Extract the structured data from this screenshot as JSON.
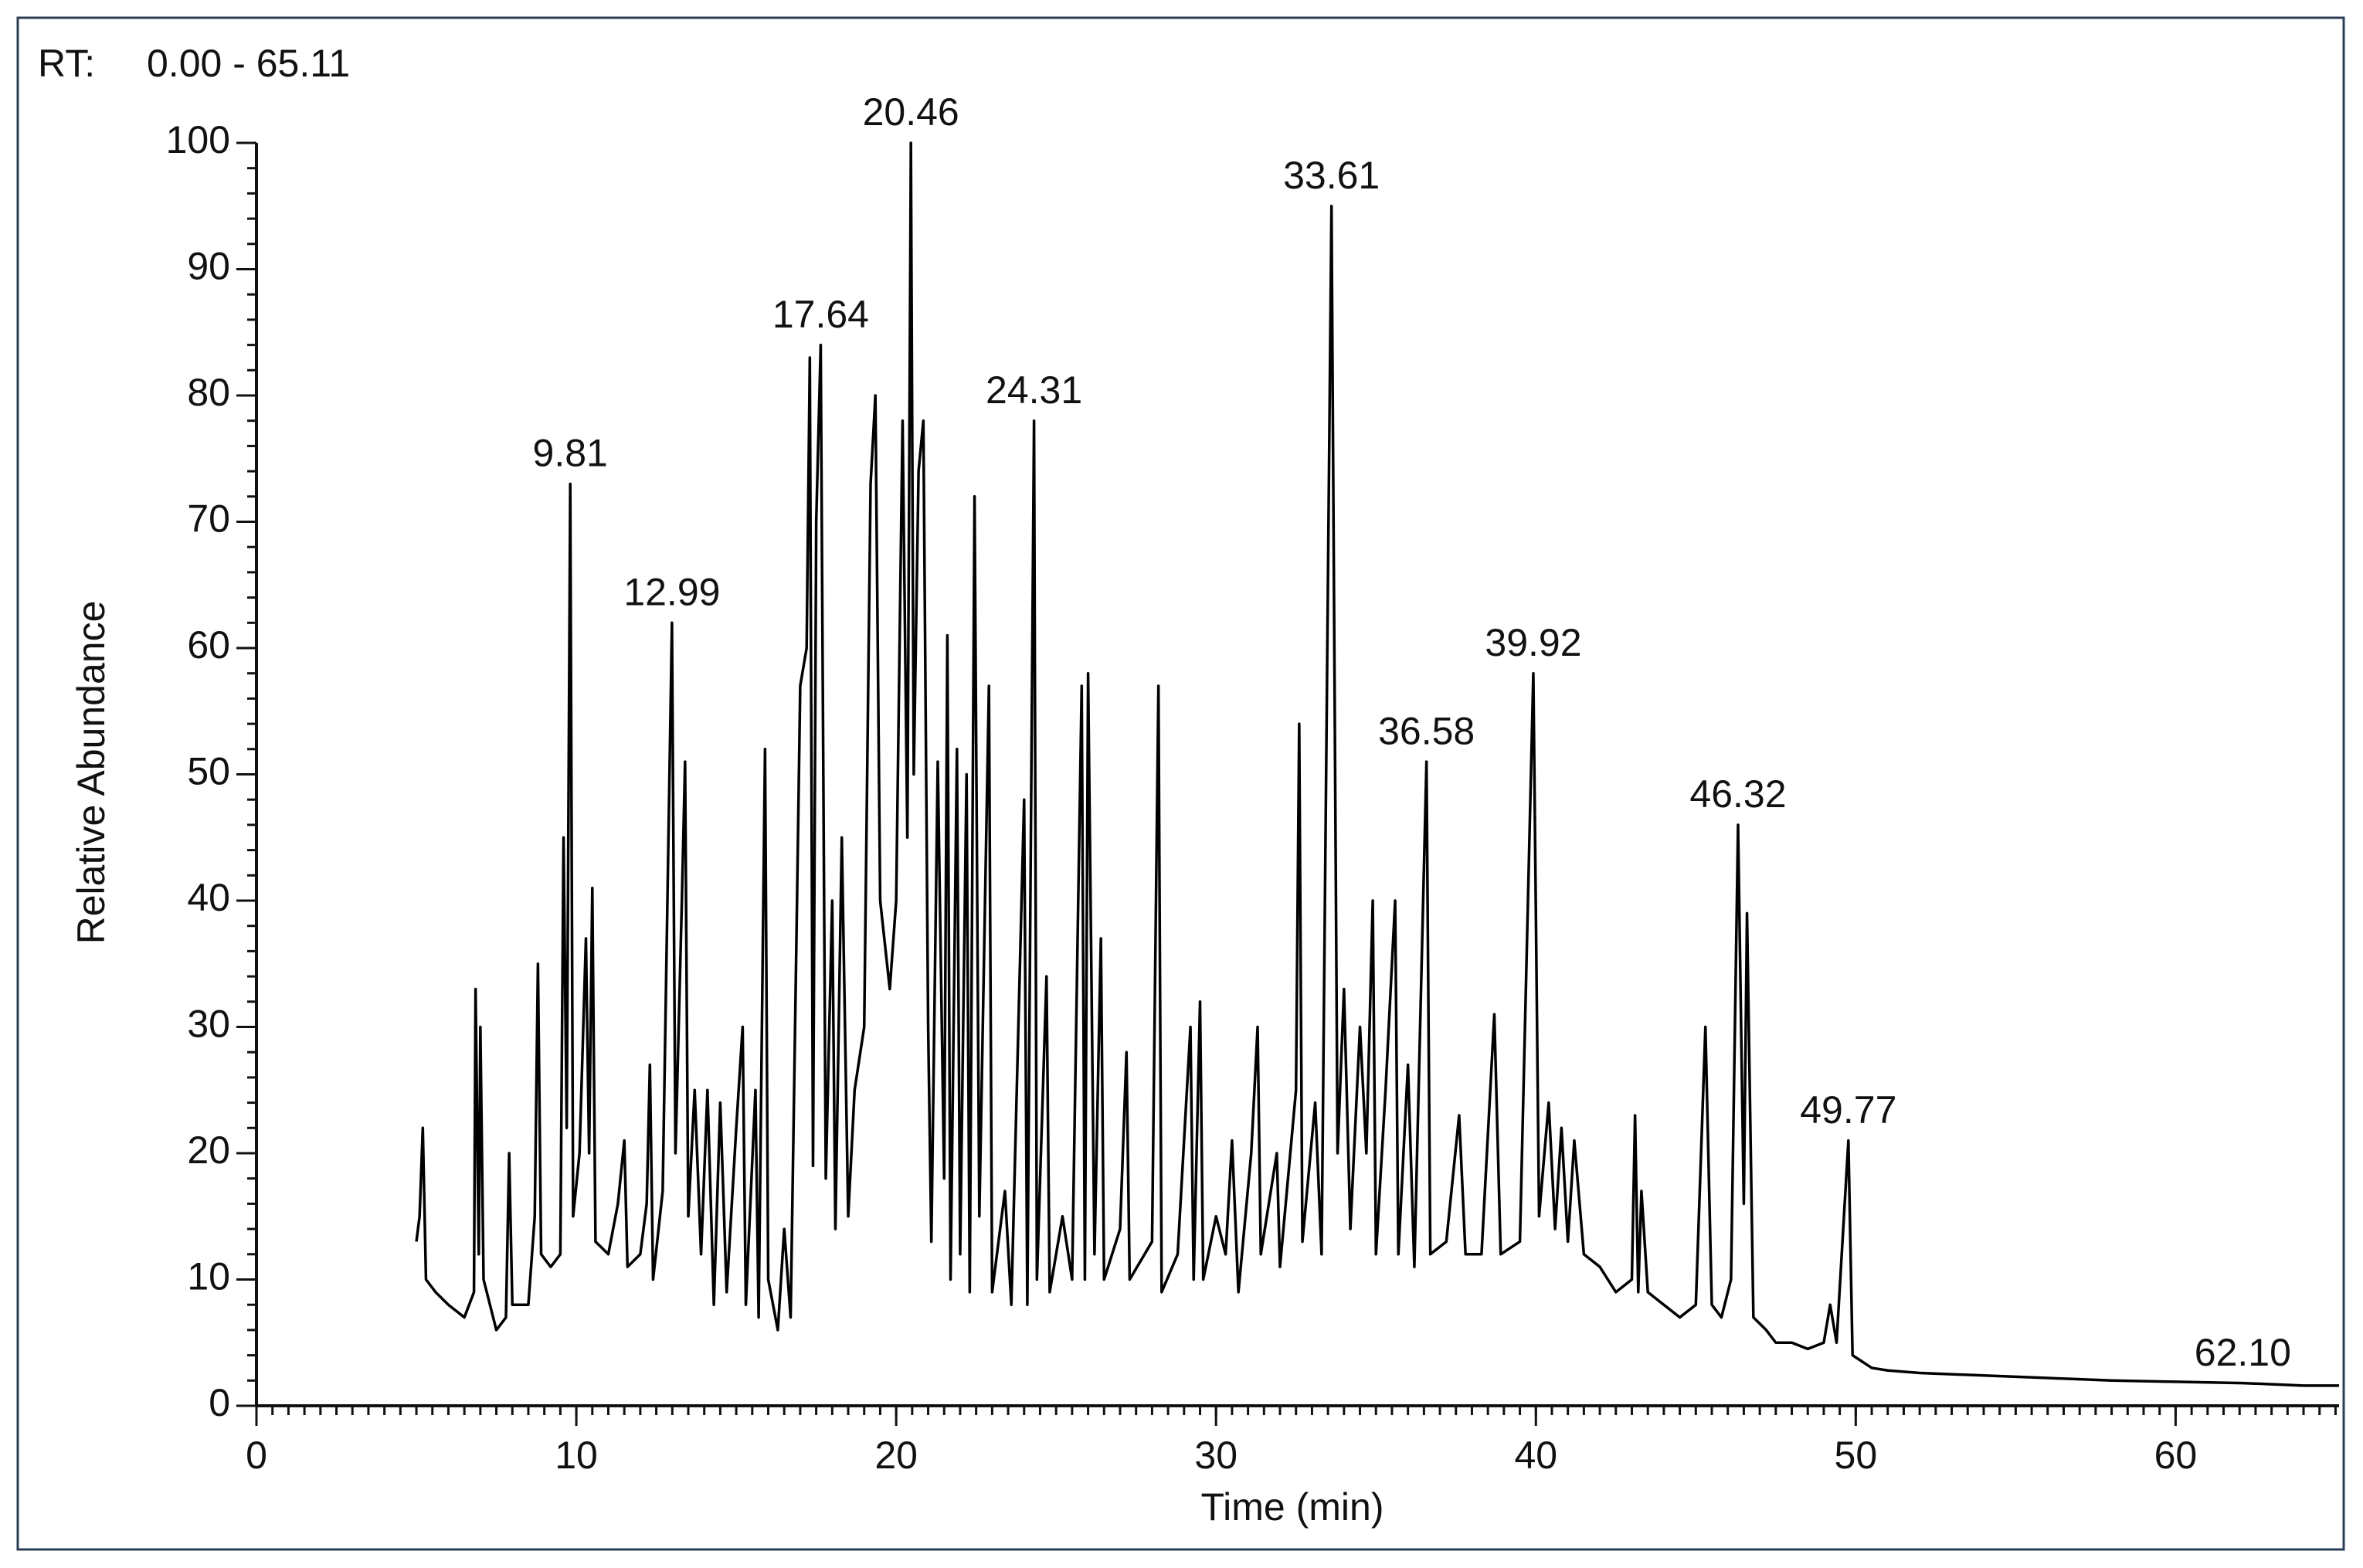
{
  "chart_data": {
    "type": "line",
    "rt_label": "RT:",
    "rt_range": "0.00 - 65.11",
    "ylabel": "Relative Abundance",
    "xlabel": "Time (min)",
    "color": "#000000",
    "range_color": "#3a3ab8",
    "xlim": [
      0,
      65.11
    ],
    "ylim": [
      0,
      100
    ],
    "xticks": [
      0,
      10,
      20,
      30,
      40,
      50,
      60
    ],
    "yticks": [
      0,
      10,
      20,
      30,
      40,
      50,
      60,
      70,
      80,
      90,
      100
    ],
    "x_minor_step": 0.5,
    "y_minor_step": 2,
    "x": [
      5.0,
      5.1,
      5.2,
      5.3,
      5.6,
      6.0,
      6.5,
      6.8,
      6.85,
      6.95,
      7.0,
      7.1,
      7.5,
      7.8,
      7.9,
      8.0,
      8.5,
      8.7,
      8.8,
      8.9,
      9.2,
      9.5,
      9.6,
      9.7,
      9.81,
      9.9,
      10.1,
      10.3,
      10.4,
      10.5,
      10.6,
      11.0,
      11.3,
      11.5,
      11.6,
      12.0,
      12.2,
      12.3,
      12.4,
      12.7,
      12.99,
      13.1,
      13.3,
      13.4,
      13.5,
      13.7,
      13.9,
      14.1,
      14.3,
      14.5,
      14.7,
      15.0,
      15.2,
      15.3,
      15.6,
      15.7,
      15.9,
      16.0,
      16.3,
      16.5,
      16.7,
      16.9,
      17.0,
      17.2,
      17.3,
      17.4,
      17.5,
      17.64,
      17.8,
      18.0,
      18.1,
      18.3,
      18.5,
      18.7,
      19.0,
      19.2,
      19.35,
      19.5,
      19.8,
      20.0,
      20.2,
      20.35,
      20.46,
      20.55,
      20.7,
      20.85,
      21.0,
      21.1,
      21.3,
      21.5,
      21.6,
      21.7,
      21.9,
      22.0,
      22.2,
      22.3,
      22.45,
      22.6,
      22.9,
      23.0,
      23.4,
      23.6,
      24.0,
      24.1,
      24.31,
      24.4,
      24.7,
      24.8,
      25.2,
      25.5,
      25.8,
      25.9,
      26.0,
      26.2,
      26.4,
      26.5,
      27.0,
      27.2,
      27.3,
      28.0,
      28.2,
      28.3,
      28.8,
      29.2,
      29.3,
      29.5,
      29.6,
      30.0,
      30.3,
      30.5,
      30.7,
      31.1,
      31.3,
      31.4,
      31.9,
      32.0,
      32.5,
      32.6,
      32.7,
      33.1,
      33.3,
      33.61,
      33.8,
      34.0,
      34.2,
      34.5,
      34.7,
      34.9,
      35.0,
      35.3,
      35.6,
      35.7,
      36.0,
      36.2,
      36.58,
      36.7,
      37.2,
      37.6,
      37.8,
      38.3,
      38.7,
      38.9,
      39.5,
      39.92,
      40.1,
      40.4,
      40.6,
      40.8,
      41.0,
      41.2,
      41.5,
      42.0,
      42.5,
      43.0,
      43.1,
      43.2,
      43.3,
      43.5,
      44.0,
      44.5,
      45.0,
      45.3,
      45.5,
      45.8,
      46.1,
      46.32,
      46.5,
      46.6,
      46.8,
      47.2,
      47.5,
      48.0,
      48.5,
      49.0,
      49.2,
      49.4,
      49.77,
      49.9,
      50.5,
      51,
      52,
      54,
      56,
      58,
      60,
      62.1,
      64,
      65.11
    ],
    "values": [
      13,
      15,
      22,
      10,
      9,
      8,
      7,
      9,
      33,
      12,
      30,
      10,
      6,
      7,
      20,
      8,
      8,
      15,
      35,
      12,
      11,
      12,
      45,
      22,
      73,
      15,
      20,
      37,
      20,
      41,
      13,
      12,
      16,
      21,
      11,
      12,
      16,
      27,
      10,
      17,
      62,
      20,
      40,
      51,
      15,
      25,
      12,
      25,
      8,
      24,
      9,
      22,
      30,
      8,
      25,
      7,
      52,
      10,
      6,
      14,
      7,
      40,
      57,
      60,
      83,
      19,
      70,
      84,
      18,
      40,
      14,
      45,
      15,
      25,
      30,
      73,
      80,
      40,
      33,
      40,
      78,
      45,
      100,
      50,
      74,
      78,
      30,
      13,
      51,
      18,
      61,
      10,
      52,
      12,
      50,
      9,
      72,
      15,
      57,
      9,
      17,
      8,
      48,
      8,
      78,
      10,
      34,
      9,
      15,
      10,
      57,
      10,
      58,
      12,
      37,
      10,
      14,
      28,
      10,
      13,
      57,
      9,
      12,
      30,
      10,
      32,
      10,
      15,
      12,
      21,
      9,
      20,
      30,
      12,
      20,
      11,
      25,
      54,
      13,
      24,
      12,
      95,
      20,
      33,
      14,
      30,
      20,
      40,
      12,
      25,
      40,
      12,
      27,
      11,
      51,
      12,
      13,
      23,
      12,
      12,
      31,
      12,
      13,
      58,
      15,
      24,
      14,
      22,
      13,
      21,
      12,
      11,
      9,
      10,
      23,
      9,
      17,
      9,
      8,
      7,
      8,
      30,
      8,
      7,
      10,
      46,
      16,
      39,
      7,
      6,
      5,
      5,
      4.5,
      5,
      8,
      5,
      21,
      4,
      3,
      2.8,
      2.6,
      2.4,
      2.2,
      2,
      1.9,
      1.8,
      1.6,
      1.6
    ],
    "annotations": [
      {
        "label": "9.81",
        "x": 9.81,
        "y": 73
      },
      {
        "label": "12.99",
        "x": 12.99,
        "y": 62
      },
      {
        "label": "17.64",
        "x": 17.64,
        "y": 84
      },
      {
        "label": "20.46",
        "x": 20.46,
        "y": 100
      },
      {
        "label": "24.31",
        "x": 24.31,
        "y": 78
      },
      {
        "label": "33.61",
        "x": 33.61,
        "y": 95
      },
      {
        "label": "36.58",
        "x": 36.58,
        "y": 51
      },
      {
        "label": "39.92",
        "x": 39.92,
        "y": 58
      },
      {
        "label": "46.32",
        "x": 46.32,
        "y": 46
      },
      {
        "label": "49.77",
        "x": 49.77,
        "y": 21
      },
      {
        "label": "62.10",
        "x": 62.1,
        "y": 1.8
      }
    ]
  }
}
